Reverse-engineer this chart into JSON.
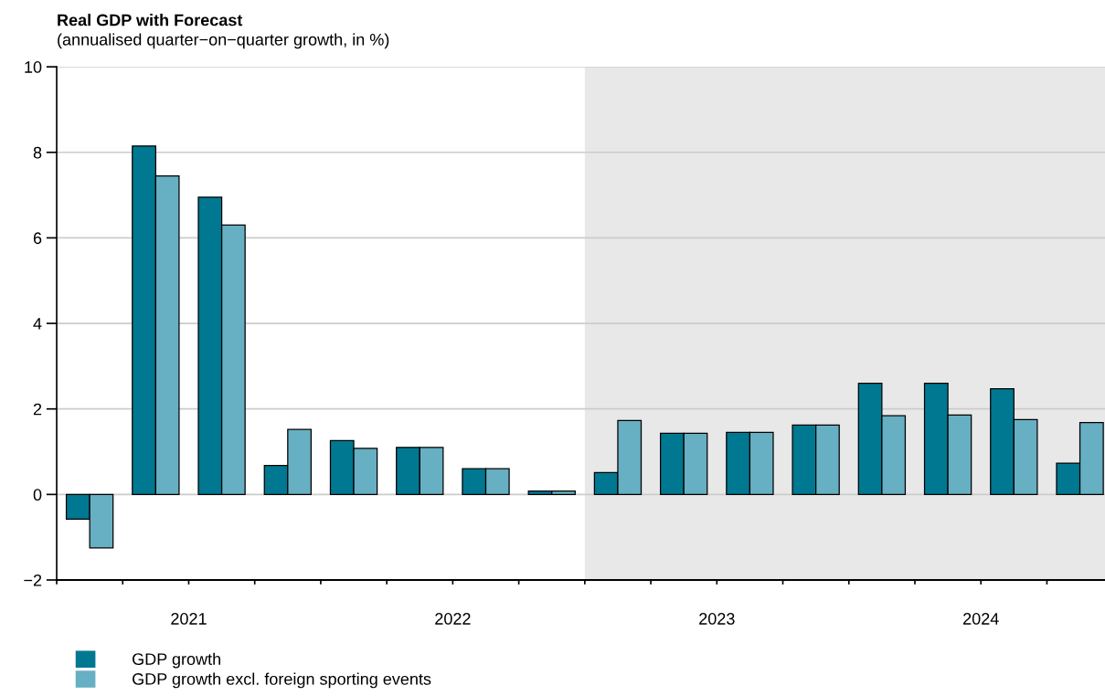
{
  "chart_data": {
    "type": "bar",
    "title": "Real GDP with Forecast",
    "subtitle": "(annualised quarter−on−quarter growth, in %)",
    "x": [
      2021.125,
      2021.375,
      2021.625,
      2021.875,
      2022.125,
      2022.375,
      2022.625,
      2022.875,
      2023.125,
      2023.375,
      2023.625,
      2023.875,
      2024.125,
      2024.375,
      2024.625,
      2024.875
    ],
    "series": [
      {
        "name": "GDP growth",
        "color": "#007891",
        "values": [
          -0.58,
          8.15,
          6.95,
          0.68,
          1.26,
          1.1,
          0.6,
          0.08,
          0.51,
          1.43,
          1.45,
          1.62,
          2.6,
          2.6,
          2.47,
          0.73
        ]
      },
      {
        "name": "GDP growth excl. foreign sporting events",
        "color": "#67afc2",
        "values": [
          -1.25,
          7.45,
          6.3,
          1.52,
          1.08,
          1.1,
          0.6,
          0.08,
          1.73,
          1.43,
          1.45,
          1.62,
          1.84,
          1.86,
          1.75,
          1.68
        ]
      }
    ],
    "xlim": [
      2021,
      2024.97
    ],
    "xticks": [
      {
        "value": 2021,
        "label": null
      },
      {
        "value": 2021.25,
        "label": null
      },
      {
        "value": 2021.5,
        "label": "2021"
      },
      {
        "value": 2021.75,
        "label": null
      },
      {
        "value": 2022,
        "label": null
      },
      {
        "value": 2022.25,
        "label": null
      },
      {
        "value": 2022.5,
        "label": "2022"
      },
      {
        "value": 2022.75,
        "label": null
      },
      {
        "value": 2023,
        "label": null
      },
      {
        "value": 2023.25,
        "label": null
      },
      {
        "value": 2023.5,
        "label": "2023"
      },
      {
        "value": 2023.75,
        "label": null
      },
      {
        "value": 2024,
        "label": null
      },
      {
        "value": 2024.25,
        "label": null
      },
      {
        "value": 2024.5,
        "label": "2024"
      },
      {
        "value": 2024.75,
        "label": null
      }
    ],
    "ylim": [
      -2,
      10
    ],
    "yticks": [
      {
        "value": -2,
        "label": "−2"
      },
      0,
      2,
      4,
      6,
      8,
      10
    ],
    "bands": [
      {
        "axis": "x",
        "from": 2023,
        "to": 2024.97,
        "label": null,
        "color": "#e8e8e8"
      }
    ],
    "grid": "y",
    "legend": "bottom left"
  }
}
